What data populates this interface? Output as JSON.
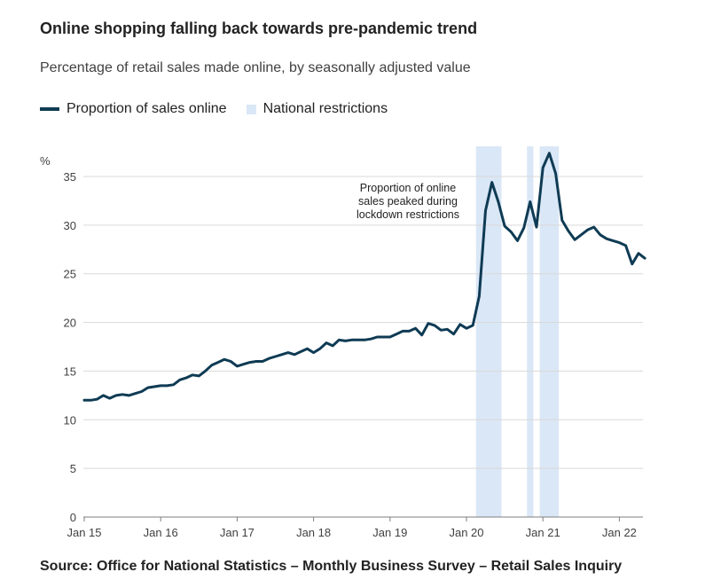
{
  "title": "Online shopping falling back towards pre-pandemic trend",
  "subtitle": "Percentage of retail sales made online, by seasonally adjusted value",
  "source": "Source: Office for National Statistics – Monthly Business Survey – Retail Sales Inquiry",
  "colors": {
    "line": "#0f3b54",
    "restriction_band": "#dae7f6",
    "grid": "#d9d9d9",
    "axis": "#7f7f7f"
  },
  "chart_data": {
    "type": "line",
    "y_unit_label": "%",
    "ylim": [
      0,
      37
    ],
    "y_ticks": [
      0,
      5,
      10,
      15,
      20,
      25,
      30,
      35
    ],
    "x_ticks": [
      {
        "label": "Jan 15",
        "month": "2015-01"
      },
      {
        "label": "Jan 16",
        "month": "2016-01"
      },
      {
        "label": "Jan 17",
        "month": "2017-01"
      },
      {
        "label": "Jan 18",
        "month": "2018-01"
      },
      {
        "label": "Jan 19",
        "month": "2019-01"
      },
      {
        "label": "Jan 20",
        "month": "2020-01"
      },
      {
        "label": "Jan 21",
        "month": "2021-01"
      },
      {
        "label": "Jan 22",
        "month": "2022-01"
      }
    ],
    "grid": "horizontal",
    "legend": "top-left",
    "series": [
      {
        "name": "Proportion of sales online",
        "color": "#0f3b54",
        "points": [
          [
            "2015-01",
            12.0
          ],
          [
            "2015-02",
            12.0
          ],
          [
            "2015-03",
            12.1
          ],
          [
            "2015-04",
            12.5
          ],
          [
            "2015-05",
            12.2
          ],
          [
            "2015-06",
            12.5
          ],
          [
            "2015-07",
            12.6
          ],
          [
            "2015-08",
            12.5
          ],
          [
            "2015-09",
            12.7
          ],
          [
            "2015-10",
            12.9
          ],
          [
            "2015-11",
            13.3
          ],
          [
            "2015-12",
            13.4
          ],
          [
            "2016-01",
            13.5
          ],
          [
            "2016-02",
            13.5
          ],
          [
            "2016-03",
            13.6
          ],
          [
            "2016-04",
            14.1
          ],
          [
            "2016-05",
            14.3
          ],
          [
            "2016-06",
            14.6
          ],
          [
            "2016-07",
            14.5
          ],
          [
            "2016-08",
            15.0
          ],
          [
            "2016-09",
            15.6
          ],
          [
            "2016-10",
            15.9
          ],
          [
            "2016-11",
            16.2
          ],
          [
            "2016-12",
            16.0
          ],
          [
            "2017-01",
            15.5
          ],
          [
            "2017-02",
            15.7
          ],
          [
            "2017-03",
            15.9
          ],
          [
            "2017-04",
            16.0
          ],
          [
            "2017-05",
            16.0
          ],
          [
            "2017-06",
            16.3
          ],
          [
            "2017-07",
            16.5
          ],
          [
            "2017-08",
            16.7
          ],
          [
            "2017-09",
            16.9
          ],
          [
            "2017-10",
            16.7
          ],
          [
            "2017-11",
            17.0
          ],
          [
            "2017-12",
            17.3
          ],
          [
            "2018-01",
            16.9
          ],
          [
            "2018-02",
            17.3
          ],
          [
            "2018-03",
            17.9
          ],
          [
            "2018-04",
            17.6
          ],
          [
            "2018-05",
            18.2
          ],
          [
            "2018-06",
            18.1
          ],
          [
            "2018-07",
            18.2
          ],
          [
            "2018-08",
            18.2
          ],
          [
            "2018-09",
            18.2
          ],
          [
            "2018-10",
            18.3
          ],
          [
            "2018-11",
            18.5
          ],
          [
            "2018-12",
            18.5
          ],
          [
            "2019-01",
            18.5
          ],
          [
            "2019-02",
            18.8
          ],
          [
            "2019-03",
            19.1
          ],
          [
            "2019-04",
            19.1
          ],
          [
            "2019-05",
            19.4
          ],
          [
            "2019-06",
            18.7
          ],
          [
            "2019-07",
            19.9
          ],
          [
            "2019-08",
            19.7
          ],
          [
            "2019-09",
            19.2
          ],
          [
            "2019-10",
            19.3
          ],
          [
            "2019-11",
            18.8
          ],
          [
            "2019-12",
            19.8
          ],
          [
            "2020-01",
            19.4
          ],
          [
            "2020-02",
            19.7
          ],
          [
            "2020-03",
            22.7
          ],
          [
            "2020-04",
            31.5
          ],
          [
            "2020-05",
            34.4
          ],
          [
            "2020-06",
            32.4
          ],
          [
            "2020-07",
            29.9
          ],
          [
            "2020-08",
            29.3
          ],
          [
            "2020-09",
            28.4
          ],
          [
            "2020-10",
            29.7
          ],
          [
            "2020-11",
            32.4
          ],
          [
            "2020-12",
            29.8
          ],
          [
            "2021-01",
            35.9
          ],
          [
            "2021-02",
            37.4
          ],
          [
            "2021-03",
            35.3
          ],
          [
            "2021-04",
            30.5
          ],
          [
            "2021-05",
            29.4
          ],
          [
            "2021-06",
            28.5
          ],
          [
            "2021-07",
            29.0
          ],
          [
            "2021-08",
            29.5
          ],
          [
            "2021-09",
            29.8
          ],
          [
            "2021-10",
            29.0
          ],
          [
            "2021-11",
            28.6
          ],
          [
            "2021-12",
            28.4
          ],
          [
            "2022-01",
            28.2
          ],
          [
            "2022-02",
            27.9
          ],
          [
            "2022-03",
            26.0
          ],
          [
            "2022-04",
            27.1
          ],
          [
            "2022-05",
            26.6
          ]
        ]
      }
    ],
    "bands": {
      "name": "National restrictions",
      "color": "#dae7f6",
      "ranges": [
        [
          "2020-03",
          "2020-06"
        ],
        [
          "2020-11",
          "2020-11"
        ],
        [
          "2021-01",
          "2021-03"
        ]
      ]
    },
    "annotations": [
      {
        "lines": [
          "Proportion of online",
          "sales peaked during",
          "lockdown restrictions"
        ],
        "anchor_month": "2020-01",
        "anchor_value": 33.5
      }
    ]
  }
}
